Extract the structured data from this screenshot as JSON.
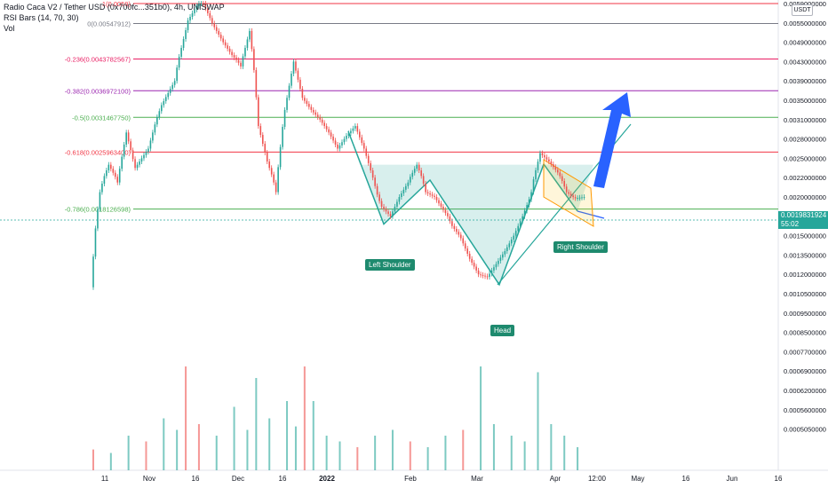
{
  "legend": {
    "title": "Radio Caca V2 / Tether USD (0x700fc...351b0), 4h, UNISWAP",
    "indicator": "RSI Bars (14, 70, 30)",
    "volume": "Vol"
  },
  "last_price": {
    "value": "0.0019831924",
    "countdown": "55:02",
    "color": "#26a69a"
  },
  "currency_badge": "USDT",
  "pattern_labels": {
    "left_shoulder": "Left Shoulder",
    "head": "Head",
    "right_shoulder": "Right Shoulder"
  },
  "chart_data": {
    "type": "candlestick",
    "y_axis": {
      "ticks": [
        "0.0059000000",
        "0.0055000000",
        "0.0049000000",
        "0.0043000000",
        "0.0039000000",
        "0.0035000000",
        "0.0031000000",
        "0.0028000000",
        "0.0025000000",
        "0.0022000000",
        "0.0020000000",
        "0.0017000000",
        "0.0015000000",
        "0.0013500000",
        "0.0012000000",
        "0.0010500000",
        "0.0009500000",
        "0.0008500000",
        "0.0007700000",
        "0.0006900000",
        "0.0006200000",
        "0.0005600000",
        "0.0005050000"
      ]
    },
    "x_axis": {
      "ticks": [
        "11",
        "Nov",
        "16",
        "Dec",
        "16",
        "2022",
        "Feb",
        "Mar",
        "Apr",
        "12:00",
        "May",
        "16",
        "Jun",
        "16"
      ]
    },
    "fib_levels": [
      {
        "label": "1(0.0059)",
        "value": 0.0059,
        "color": "#f23645"
      },
      {
        "label": "0(0.00547912)",
        "value": 0.00547912,
        "color": "#787b86"
      },
      {
        "label": "-0.236(0.0043782567)",
        "value": 0.0043782567,
        "color": "#e91e63"
      },
      {
        "label": "-0.382(0.0036972100)",
        "value": 0.00369721,
        "color": "#9c27b0"
      },
      {
        "label": "-0.5(0.0031467750)",
        "value": 0.003146775,
        "color": "#4caf50"
      },
      {
        "label": "-0.618(0.0025963400)",
        "value": 0.00259634,
        "color": "#f23645"
      },
      {
        "label": "-0.786(0.0018126598)",
        "value": 0.0018126598,
        "color": "#4caf50"
      }
    ],
    "price_path": [
      [
        0,
        0.0011
      ],
      [
        2,
        0.00205
      ],
      [
        4,
        0.0024
      ],
      [
        6,
        0.00215
      ],
      [
        8,
        0.0029
      ],
      [
        10,
        0.00235
      ],
      [
        13,
        0.00265
      ],
      [
        16,
        0.0034
      ],
      [
        19,
        0.0039
      ],
      [
        22,
        0.00555
      ],
      [
        25,
        0.006
      ],
      [
        27,
        0.0056
      ],
      [
        30,
        0.0049
      ],
      [
        32,
        0.0045
      ],
      [
        34,
        0.0042
      ],
      [
        36,
        0.00525
      ],
      [
        38,
        0.003
      ],
      [
        40,
        0.00245
      ],
      [
        42,
        0.00205
      ],
      [
        44,
        0.0033
      ],
      [
        46,
        0.0043
      ],
      [
        48,
        0.00355
      ],
      [
        50,
        0.0033
      ],
      [
        52,
        0.0031
      ],
      [
        54,
        0.0029
      ],
      [
        56,
        0.00265
      ],
      [
        58,
        0.00285
      ],
      [
        60,
        0.003
      ],
      [
        62,
        0.00265
      ],
      [
        64,
        0.0022
      ],
      [
        66,
        0.00185
      ],
      [
        68,
        0.0017
      ],
      [
        70,
        0.002
      ],
      [
        72,
        0.00215
      ],
      [
        74,
        0.0024
      ],
      [
        76,
        0.00205
      ],
      [
        78,
        0.002
      ],
      [
        80,
        0.0018
      ],
      [
        82,
        0.0016
      ],
      [
        84,
        0.00148
      ],
      [
        86,
        0.00132
      ],
      [
        88,
        0.0012
      ],
      [
        90,
        0.00118
      ],
      [
        92,
        0.00128
      ],
      [
        94,
        0.00138
      ],
      [
        96,
        0.0015
      ],
      [
        98,
        0.0017
      ],
      [
        100,
        0.00205
      ],
      [
        102,
        0.00258
      ],
      [
        104,
        0.00245
      ],
      [
        106,
        0.00228
      ],
      [
        108,
        0.00205
      ],
      [
        110,
        0.00198
      ],
      [
        112,
        0.002
      ]
    ],
    "volume_bars": [
      {
        "i": 0,
        "v": 0.18
      },
      {
        "i": 4,
        "v": 0.15
      },
      {
        "i": 8,
        "v": 0.3
      },
      {
        "i": 12,
        "v": 0.25
      },
      {
        "i": 16,
        "v": 0.45
      },
      {
        "i": 19,
        "v": 0.35
      },
      {
        "i": 21,
        "v": 0.9
      },
      {
        "i": 24,
        "v": 0.4
      },
      {
        "i": 28,
        "v": 0.3
      },
      {
        "i": 32,
        "v": 0.55
      },
      {
        "i": 35,
        "v": 0.35
      },
      {
        "i": 37,
        "v": 0.8
      },
      {
        "i": 40,
        "v": 0.45
      },
      {
        "i": 44,
        "v": 0.6
      },
      {
        "i": 46,
        "v": 0.38
      },
      {
        "i": 48,
        "v": 0.9
      },
      {
        "i": 50,
        "v": 0.6
      },
      {
        "i": 53,
        "v": 0.3
      },
      {
        "i": 56,
        "v": 0.25
      },
      {
        "i": 60,
        "v": 0.2
      },
      {
        "i": 64,
        "v": 0.3
      },
      {
        "i": 68,
        "v": 0.35
      },
      {
        "i": 72,
        "v": 0.25
      },
      {
        "i": 76,
        "v": 0.2
      },
      {
        "i": 80,
        "v": 0.3
      },
      {
        "i": 84,
        "v": 0.35
      },
      {
        "i": 88,
        "v": 0.9
      },
      {
        "i": 91,
        "v": 0.4
      },
      {
        "i": 95,
        "v": 0.3
      },
      {
        "i": 98,
        "v": 0.25
      },
      {
        "i": 101,
        "v": 0.85
      },
      {
        "i": 104,
        "v": 0.4
      },
      {
        "i": 107,
        "v": 0.3
      },
      {
        "i": 110,
        "v": 0.2
      }
    ],
    "series_colors": {
      "up": "#26a69a",
      "down": "#ef5350"
    },
    "pattern": {
      "type": "head-and-shoulders",
      "left_shoulder_price": 0.00162,
      "head_price": 0.00112,
      "right_shoulder_price": 0.00178,
      "neckline_price": 0.0024
    }
  }
}
